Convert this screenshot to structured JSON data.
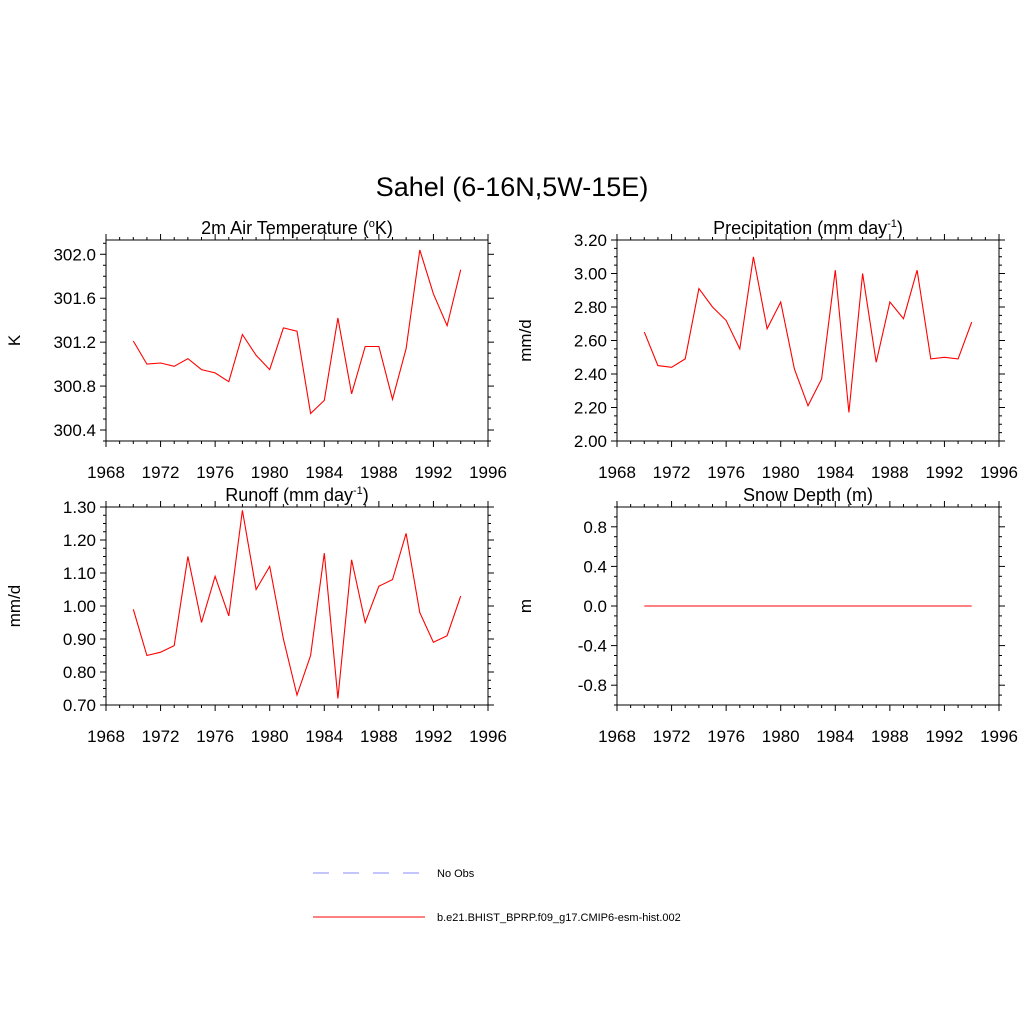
{
  "figure": {
    "title": "Sahel (6-16N,5W-15E)"
  },
  "legend": {
    "entries": [
      {
        "label": "No Obs",
        "color": "#a0a0ff",
        "style": "dashed"
      },
      {
        "label": "b.e21.BHIST_BPRP.f09_g17.CMIP6-esm-hist.002",
        "color": "#ff0000",
        "style": "solid"
      }
    ]
  },
  "chart_data": [
    {
      "type": "line",
      "title_main": "2m Air Temperature (",
      "title_sup": "o",
      "title_end": "K)",
      "ylabel": "K",
      "xlim": [
        1968,
        1996
      ],
      "ylim": [
        300.3,
        302.13
      ],
      "xticks": [
        1968,
        1972,
        1976,
        1980,
        1984,
        1988,
        1992,
        1996
      ],
      "yticks": [
        "300.4",
        "300.8",
        "301.2",
        "301.6",
        "302.0"
      ],
      "x": [
        1970,
        1971,
        1972,
        1973,
        1974,
        1975,
        1976,
        1977,
        1978,
        1979,
        1980,
        1981,
        1982,
        1983,
        1984,
        1985,
        1986,
        1987,
        1988,
        1989,
        1990,
        1991,
        1992,
        1993,
        1994
      ],
      "series": [
        {
          "color": "#ff0000",
          "values": [
            301.21,
            301.0,
            301.01,
            300.98,
            301.05,
            300.95,
            300.92,
            300.84,
            301.27,
            301.08,
            300.95,
            301.33,
            301.3,
            300.55,
            300.67,
            301.42,
            300.73,
            301.16,
            301.16,
            300.68,
            301.14,
            302.04,
            301.64,
            301.35,
            301.86
          ]
        }
      ]
    },
    {
      "type": "line",
      "title_main": "Precipitation (mm day",
      "title_sup": "-1",
      "title_end": ")",
      "ylabel": "mm/d",
      "xlim": [
        1968,
        1996
      ],
      "ylim": [
        2.0,
        3.2
      ],
      "xticks": [
        1968,
        1972,
        1976,
        1980,
        1984,
        1988,
        1992,
        1996
      ],
      "yticks": [
        "2.00",
        "2.20",
        "2.40",
        "2.60",
        "2.80",
        "3.00",
        "3.20"
      ],
      "x": [
        1970,
        1971,
        1972,
        1973,
        1974,
        1975,
        1976,
        1977,
        1978,
        1979,
        1980,
        1981,
        1982,
        1983,
        1984,
        1985,
        1986,
        1987,
        1988,
        1989,
        1990,
        1991,
        1992,
        1993,
        1994
      ],
      "series": [
        {
          "color": "#ff0000",
          "values": [
            2.65,
            2.45,
            2.44,
            2.49,
            2.91,
            2.8,
            2.72,
            2.55,
            3.1,
            2.67,
            2.83,
            2.43,
            2.21,
            2.37,
            3.02,
            2.17,
            3.0,
            2.47,
            2.83,
            2.73,
            3.02,
            2.49,
            2.5,
            2.49,
            2.71
          ]
        }
      ]
    },
    {
      "type": "line",
      "title_main": "Runoff (mm day",
      "title_sup": "-1",
      "title_end": ")",
      "ylabel": "mm/d",
      "xlim": [
        1968,
        1996
      ],
      "ylim": [
        0.7,
        1.3
      ],
      "xticks": [
        1968,
        1972,
        1976,
        1980,
        1984,
        1988,
        1992,
        1996
      ],
      "yticks": [
        "0.70",
        "0.80",
        "0.90",
        "1.00",
        "1.10",
        "1.20",
        "1.30"
      ],
      "x": [
        1970,
        1971,
        1972,
        1973,
        1974,
        1975,
        1976,
        1977,
        1978,
        1979,
        1980,
        1981,
        1982,
        1983,
        1984,
        1985,
        1986,
        1987,
        1988,
        1989,
        1990,
        1991,
        1992,
        1993,
        1994
      ],
      "series": [
        {
          "color": "#ff0000",
          "values": [
            0.99,
            0.85,
            0.86,
            0.88,
            1.15,
            0.95,
            1.09,
            0.97,
            1.29,
            1.05,
            1.12,
            0.9,
            0.73,
            0.85,
            1.16,
            0.72,
            1.14,
            0.95,
            1.06,
            1.08,
            1.22,
            0.98,
            0.89,
            0.91,
            1.03
          ]
        }
      ]
    },
    {
      "type": "line",
      "title_main": "Snow Depth (m)",
      "title_sup": "",
      "title_end": "",
      "ylabel": "m",
      "xlim": [
        1968,
        1996
      ],
      "ylim": [
        -1.0,
        1.0
      ],
      "xticks": [
        1968,
        1972,
        1976,
        1980,
        1984,
        1988,
        1992,
        1996
      ],
      "yticks": [
        "-0.8",
        "-0.4",
        "0.0",
        "0.4",
        "0.8"
      ],
      "x": [
        1970,
        1971,
        1972,
        1973,
        1974,
        1975,
        1976,
        1977,
        1978,
        1979,
        1980,
        1981,
        1982,
        1983,
        1984,
        1985,
        1986,
        1987,
        1988,
        1989,
        1990,
        1991,
        1992,
        1993,
        1994
      ],
      "series": [
        {
          "color": "#ff0000",
          "values": [
            0,
            0,
            0,
            0,
            0,
            0,
            0,
            0,
            0,
            0,
            0,
            0,
            0,
            0,
            0,
            0,
            0,
            0,
            0,
            0,
            0,
            0,
            0,
            0,
            0
          ]
        }
      ]
    }
  ]
}
